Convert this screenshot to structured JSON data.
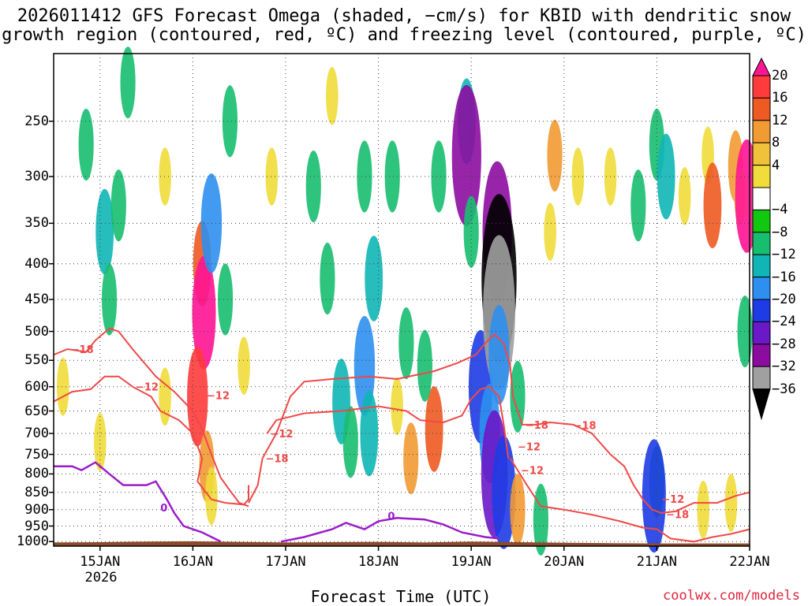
{
  "title": {
    "line1": "2026011412 GFS Forecast Omega (shaded, −cm/s) for KBID with dendritic snow",
    "line2": "growth region (contoured, red, ºC) and freezing level (contoured, purple, ºC)"
  },
  "footer": {
    "xlabel": "Forecast Time (UTC)",
    "year": "2026",
    "credit": "coolwx.com/models"
  },
  "chart_data": {
    "type": "heatmap",
    "variable": "omega (−cm/s)",
    "x_ticks": [
      "15JAN",
      "16JAN",
      "17JAN",
      "18JAN",
      "19JAN",
      "20JAN",
      "21JAN",
      "22JAN"
    ],
    "x_range": [
      "14JAN 12Z",
      "22JAN 00Z"
    ],
    "y_ticks": [
      250,
      300,
      350,
      400,
      450,
      500,
      550,
      600,
      650,
      700,
      750,
      800,
      850,
      900,
      950,
      1000
    ],
    "y_range": [
      200,
      1015
    ],
    "y_scale": "log-pressure (hPa), reversed",
    "grid": "dotted",
    "colorbar": {
      "labels": [
        "20",
        "16",
        "12",
        "8",
        "4",
        "−4",
        "−8",
        "−12",
        "−16",
        "−20",
        "−24",
        "−28",
        "−32",
        "−36"
      ],
      "colors": [
        "#ff1493",
        "#ff3b3b",
        "#ee5a22",
        "#f29a33",
        "#f0c23a",
        "#f0dc3a",
        "#ffffff",
        "#10c810",
        "#18be70",
        "#10b6b6",
        "#2e8ff0",
        "#1e3ce6",
        "#6a18c8",
        "#8c0ca0",
        "#a0a0a0",
        "#000000"
      ]
    },
    "omega_cells": [
      {
        "t": 15.05,
        "p": 360,
        "v": -12
      },
      {
        "t": 15.2,
        "p": 330,
        "v": -8
      },
      {
        "t": 15.1,
        "p": 450,
        "v": -8
      },
      {
        "t": 14.85,
        "p": 270,
        "v": -8
      },
      {
        "t": 15.3,
        "p": 220,
        "v": -8
      },
      {
        "t": 15.0,
        "p": 720,
        "v": 4
      },
      {
        "t": 14.6,
        "p": 600,
        "v": 4
      },
      {
        "t": 15.7,
        "p": 300,
        "v": 4
      },
      {
        "t": 15.7,
        "p": 620,
        "v": 4
      },
      {
        "t": 16.1,
        "p": 400,
        "v": 12
      },
      {
        "t": 16.12,
        "p": 470,
        "v": 20
      },
      {
        "t": 16.05,
        "p": 620,
        "v": 16
      },
      {
        "t": 16.15,
        "p": 780,
        "v": 8
      },
      {
        "t": 16.2,
        "p": 860,
        "v": 4
      },
      {
        "t": 16.2,
        "p": 350,
        "v": -16
      },
      {
        "t": 16.35,
        "p": 450,
        "v": -8
      },
      {
        "t": 16.4,
        "p": 250,
        "v": -8
      },
      {
        "t": 16.55,
        "p": 560,
        "v": 4
      },
      {
        "t": 16.85,
        "p": 300,
        "v": 4
      },
      {
        "t": 17.3,
        "p": 310,
        "v": -8
      },
      {
        "t": 17.45,
        "p": 420,
        "v": -8
      },
      {
        "t": 17.6,
        "p": 630,
        "v": -12
      },
      {
        "t": 17.7,
        "p": 720,
        "v": -8
      },
      {
        "t": 17.5,
        "p": 230,
        "v": 4
      },
      {
        "t": 17.85,
        "p": 300,
        "v": -8
      },
      {
        "t": 17.95,
        "p": 420,
        "v": -12
      },
      {
        "t": 17.85,
        "p": 560,
        "v": -16
      },
      {
        "t": 17.9,
        "p": 700,
        "v": -12
      },
      {
        "t": 18.15,
        "p": 300,
        "v": -8
      },
      {
        "t": 18.3,
        "p": 520,
        "v": -8
      },
      {
        "t": 18.2,
        "p": 640,
        "v": 4
      },
      {
        "t": 18.35,
        "p": 760,
        "v": 8
      },
      {
        "t": 18.6,
        "p": 690,
        "v": 12
      },
      {
        "t": 18.5,
        "p": 560,
        "v": -8
      },
      {
        "t": 18.65,
        "p": 300,
        "v": -8
      },
      {
        "t": 18.95,
        "p": 250,
        "v": -12
      },
      {
        "t": 18.95,
        "p": 280,
        "v": -28
      },
      {
        "t": 19.0,
        "p": 360,
        "v": -8
      },
      {
        "t": 19.1,
        "p": 600,
        "v": -20
      },
      {
        "t": 19.2,
        "p": 700,
        "v": -16
      },
      {
        "t": 19.25,
        "p": 800,
        "v": -24
      },
      {
        "t": 19.28,
        "p": 360,
        "v": -28
      },
      {
        "t": 19.3,
        "p": 420,
        "v": -36
      },
      {
        "t": 19.3,
        "p": 470,
        "v": -32
      },
      {
        "t": 19.3,
        "p": 540,
        "v": -16
      },
      {
        "t": 19.35,
        "p": 850,
        "v": -20
      },
      {
        "t": 19.5,
        "p": 900,
        "v": 8
      },
      {
        "t": 19.5,
        "p": 620,
        "v": -8
      },
      {
        "t": 19.85,
        "p": 360,
        "v": 4
      },
      {
        "t": 19.9,
        "p": 280,
        "v": 8
      },
      {
        "t": 19.75,
        "p": 930,
        "v": -8
      },
      {
        "t": 20.15,
        "p": 300,
        "v": 4
      },
      {
        "t": 20.5,
        "p": 300,
        "v": 4
      },
      {
        "t": 20.8,
        "p": 330,
        "v": -8
      },
      {
        "t": 21.0,
        "p": 270,
        "v": -8
      },
      {
        "t": 21.0,
        "p": 820,
        "v": -8
      },
      {
        "t": 20.97,
        "p": 860,
        "v": -20
      },
      {
        "t": 21.1,
        "p": 300,
        "v": -12
      },
      {
        "t": 21.3,
        "p": 320,
        "v": 4
      },
      {
        "t": 21.55,
        "p": 280,
        "v": 4
      },
      {
        "t": 21.6,
        "p": 330,
        "v": 12
      },
      {
        "t": 21.85,
        "p": 290,
        "v": 8
      },
      {
        "t": 21.9,
        "p": 320,
        "v": 4
      },
      {
        "t": 21.97,
        "p": 320,
        "v": 20
      },
      {
        "t": 21.95,
        "p": 500,
        "v": -8
      },
      {
        "t": 21.8,
        "p": 880,
        "v": 4
      },
      {
        "t": 21.5,
        "p": 900,
        "v": 4
      }
    ],
    "dgz_contour_labels": [
      "−18",
      "−12",
      "−12",
      "−18",
      "−18",
      "−12",
      "−12",
      "−18",
      "−12",
      "−18",
      "−12"
    ],
    "dgz_contours": [
      {
        "label_index": 0,
        "label_at": 1,
        "points": [
          [
            14.5,
            540
          ],
          [
            14.65,
            530
          ],
          [
            14.85,
            535
          ],
          [
            14.95,
            515
          ],
          [
            15.1,
            495
          ],
          [
            15.2,
            500
          ],
          [
            15.35,
            530
          ],
          [
            15.6,
            580
          ],
          [
            15.8,
            610
          ],
          [
            16.0,
            650
          ],
          [
            16.1,
            690
          ],
          [
            16.2,
            750
          ],
          [
            16.3,
            810
          ],
          [
            16.4,
            845
          ],
          [
            16.5,
            880
          ],
          [
            16.6,
            890
          ]
        ]
      },
      {
        "label_index": 1,
        "label_at": 5,
        "points": [
          [
            14.5,
            630
          ],
          [
            14.7,
            610
          ],
          [
            14.9,
            605
          ],
          [
            15.05,
            580
          ],
          [
            15.2,
            580
          ],
          [
            15.35,
            600
          ],
          [
            15.55,
            620
          ],
          [
            15.65,
            650
          ],
          [
            15.85,
            670
          ],
          [
            16.0,
            700
          ],
          [
            16.1,
            760
          ],
          [
            16.05,
            820
          ],
          [
            16.2,
            870
          ],
          [
            16.35,
            880
          ],
          [
            16.55,
            885
          ],
          [
            16.6,
            870
          ],
          [
            16.6,
            830
          ]
        ]
      },
      {
        "label_index": 2,
        "label_at": 0,
        "points": [
          [
            16.8,
            700
          ],
          [
            16.9,
            670
          ],
          [
            17.2,
            655
          ],
          [
            17.6,
            650
          ],
          [
            18.0,
            640
          ],
          [
            18.3,
            650
          ],
          [
            18.45,
            670
          ],
          [
            18.7,
            675
          ],
          [
            18.9,
            660
          ],
          [
            19.0,
            625
          ],
          [
            19.1,
            605
          ],
          [
            19.2,
            600
          ],
          [
            19.3,
            620
          ],
          [
            19.35,
            680
          ],
          [
            19.4,
            760
          ]
        ]
      },
      {
        "label_index": 3,
        "label_at": 2,
        "points": [
          [
            16.6,
            880
          ],
          [
            16.7,
            830
          ],
          [
            16.75,
            760
          ],
          [
            16.9,
            700
          ],
          [
            17.05,
            620
          ],
          [
            17.2,
            590
          ],
          [
            17.5,
            585
          ],
          [
            17.9,
            580
          ],
          [
            18.2,
            585
          ],
          [
            18.6,
            570
          ],
          [
            18.85,
            555
          ],
          [
            19.05,
            540
          ],
          [
            19.15,
            520
          ],
          [
            19.25,
            505
          ],
          [
            19.35,
            520
          ],
          [
            19.42,
            560
          ]
        ]
      },
      {
        "label_index": 4,
        "label_at": 2,
        "points": [
          [
            19.42,
            560
          ],
          [
            19.45,
            620
          ],
          [
            19.55,
            680
          ],
          [
            19.7,
            680
          ],
          [
            19.85,
            675
          ],
          [
            20.1,
            680
          ],
          [
            20.3,
            700
          ],
          [
            20.5,
            750
          ],
          [
            20.65,
            780
          ],
          [
            20.75,
            830
          ],
          [
            20.85,
            870
          ],
          [
            20.95,
            900
          ],
          [
            21.05,
            910
          ],
          [
            21.2,
            905
          ],
          [
            21.4,
            880
          ],
          [
            21.65,
            880
          ],
          [
            21.85,
            860
          ],
          [
            22.0,
            850
          ]
        ]
      },
      {
        "label_index": 5,
        "label_at": 1,
        "points": [
          [
            19.42,
            760
          ],
          [
            19.5,
            790
          ],
          [
            19.6,
            830
          ],
          [
            19.75,
            890
          ],
          [
            20.0,
            900
          ],
          [
            20.3,
            915
          ],
          [
            20.6,
            935
          ],
          [
            20.85,
            955
          ],
          [
            21.0,
            960
          ],
          [
            21.15,
            990
          ],
          [
            21.4,
            1000
          ],
          [
            21.6,
            985
          ],
          [
            21.8,
            975
          ],
          [
            22.0,
            960
          ]
        ]
      }
    ],
    "freezing_level_contours": [
      {
        "label": "0",
        "points": [
          [
            14.5,
            780
          ],
          [
            14.7,
            780
          ],
          [
            14.8,
            790
          ],
          [
            14.95,
            770
          ],
          [
            15.1,
            800
          ],
          [
            15.25,
            830
          ],
          [
            15.5,
            830
          ],
          [
            15.6,
            820
          ],
          [
            15.72,
            870
          ],
          [
            15.8,
            910
          ],
          [
            15.9,
            950
          ],
          [
            16.1,
            970
          ],
          [
            16.3,
            1000
          ]
        ]
      },
      {
        "label": "0",
        "points": [
          [
            16.95,
            1000
          ],
          [
            17.2,
            985
          ],
          [
            17.5,
            960
          ],
          [
            17.65,
            940
          ],
          [
            17.85,
            960
          ],
          [
            18.0,
            935
          ],
          [
            18.2,
            925
          ],
          [
            18.5,
            930
          ],
          [
            18.7,
            945
          ],
          [
            18.9,
            970
          ],
          [
            19.15,
            985
          ],
          [
            19.3,
            990
          ]
        ]
      }
    ],
    "terrain_pressure": [
      [
        14.5,
        1003
      ],
      [
        15.0,
        1002
      ],
      [
        15.5,
        1000
      ],
      [
        16.0,
        999
      ],
      [
        16.5,
        1001
      ],
      [
        17.0,
        1003
      ],
      [
        17.5,
        1002
      ],
      [
        18.0,
        1001
      ],
      [
        18.5,
        1003
      ],
      [
        19.0,
        1000
      ],
      [
        19.5,
        1002
      ],
      [
        20.0,
        1004
      ],
      [
        20.5,
        1005
      ],
      [
        21.0,
        1006
      ],
      [
        21.5,
        1006
      ],
      [
        22.0,
        1006
      ]
    ]
  }
}
